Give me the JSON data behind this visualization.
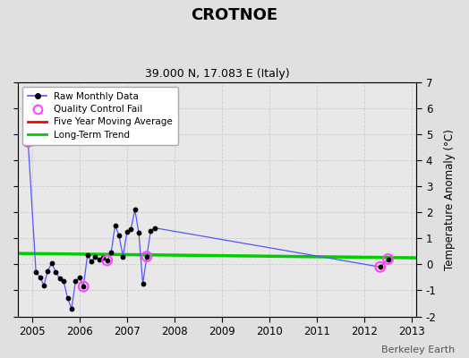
{
  "title": "CROTNOE",
  "subtitle": "39.000 N, 17.083 E (Italy)",
  "ylabel": "Temperature Anomaly (°C)",
  "footer": "Berkeley Earth",
  "ylim": [
    -2,
    7
  ],
  "yticks": [
    -2,
    -1,
    0,
    1,
    2,
    3,
    4,
    5,
    6,
    7
  ],
  "xlim": [
    2004.7,
    2013.1
  ],
  "xticks": [
    2005,
    2006,
    2007,
    2008,
    2009,
    2010,
    2011,
    2012,
    2013
  ],
  "background_color": "#e0e0e0",
  "plot_background": "#e8e8e8",
  "raw_x": [
    2004.917,
    2005.083,
    2005.167,
    2005.25,
    2005.333,
    2005.417,
    2005.5,
    2005.583,
    2005.667,
    2005.75,
    2005.833,
    2005.917,
    2006.0,
    2006.083,
    2006.167,
    2006.25,
    2006.333,
    2006.417,
    2006.5,
    2006.583,
    2006.667,
    2006.75,
    2006.833,
    2006.917,
    2007.0,
    2007.083,
    2007.167,
    2007.25,
    2007.333,
    2007.417,
    2007.5,
    2007.583,
    2012.333,
    2012.5
  ],
  "raw_y": [
    4.7,
    -0.3,
    -0.5,
    -0.8,
    -0.25,
    0.05,
    -0.3,
    -0.55,
    -0.65,
    -1.3,
    -1.7,
    -0.65,
    -0.5,
    -0.85,
    0.35,
    0.1,
    0.3,
    0.2,
    0.25,
    0.15,
    0.45,
    1.5,
    1.1,
    0.3,
    1.25,
    1.35,
    2.1,
    1.2,
    -0.75,
    0.3,
    1.3,
    1.4,
    -0.1,
    0.2
  ],
  "qc_fail_x": [
    2004.917,
    2006.083,
    2006.583,
    2007.417,
    2012.333,
    2012.5
  ],
  "qc_fail_y": [
    4.7,
    -0.85,
    0.15,
    0.3,
    -0.1,
    0.2
  ],
  "trend_x": [
    2004.7,
    2013.1
  ],
  "trend_y": [
    0.42,
    0.25
  ],
  "line_color": "#5555ff",
  "dot_color": "#000000",
  "qc_color": "#ff44ff",
  "trend_color": "#00cc00",
  "moving_avg_color": "#ff0000",
  "grid_color": "#cccccc",
  "grid_linestyle": "--"
}
